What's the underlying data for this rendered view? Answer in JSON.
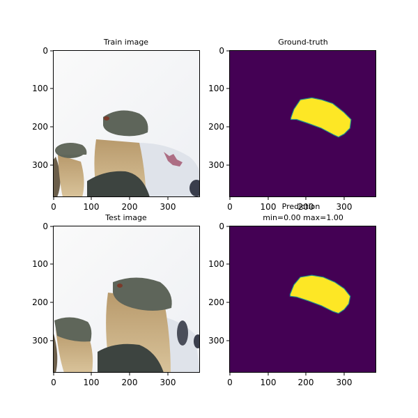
{
  "chart_data": [
    {
      "type": "image",
      "title": "Train image",
      "xlim": [
        0,
        384
      ],
      "ylim": [
        384,
        0
      ],
      "xticks": [
        0,
        100,
        200,
        300
      ],
      "yticks": [
        0,
        100,
        200,
        300
      ],
      "xtick_labels": [
        "0",
        "100",
        "200",
        "300"
      ],
      "ytick_labels": [
        "0",
        "100",
        "200",
        "300"
      ]
    },
    {
      "type": "heatmap",
      "title": "Ground-truth",
      "xlim": [
        0,
        384
      ],
      "ylim": [
        384,
        0
      ],
      "xticks": [
        0,
        100,
        200,
        300
      ],
      "yticks": [
        0,
        100,
        200,
        300
      ],
      "xtick_labels": [
        "0",
        "100",
        "200",
        "300"
      ],
      "ytick_labels": [
        "0",
        "100",
        "200",
        "300"
      ],
      "colormap": "viridis",
      "background_color": "#440154",
      "mask_color": "#fde725",
      "mask_outline": [
        [
          160,
          178
        ],
        [
          168,
          155
        ],
        [
          185,
          130
        ],
        [
          215,
          125
        ],
        [
          240,
          130
        ],
        [
          270,
          140
        ],
        [
          298,
          162
        ],
        [
          318,
          182
        ],
        [
          315,
          205
        ],
        [
          300,
          220
        ],
        [
          285,
          228
        ],
        [
          272,
          222
        ],
        [
          240,
          205
        ],
        [
          205,
          192
        ],
        [
          175,
          182
        ],
        [
          160,
          182
        ]
      ]
    },
    {
      "type": "image",
      "title": "Test image",
      "xlim": [
        0,
        384
      ],
      "ylim": [
        384,
        0
      ],
      "xticks": [
        0,
        100,
        200,
        300
      ],
      "yticks": [
        0,
        100,
        200,
        300
      ],
      "xtick_labels": [
        "0",
        "100",
        "200",
        "300"
      ],
      "ytick_labels": [
        "0",
        "100",
        "200",
        "300"
      ]
    },
    {
      "type": "heatmap",
      "title": "Prediction",
      "subtitle": "min=0.00 max=1.00",
      "xlim": [
        0,
        384
      ],
      "ylim": [
        384,
        0
      ],
      "xticks": [
        0,
        100,
        200,
        300
      ],
      "yticks": [
        0,
        100,
        200,
        300
      ],
      "xtick_labels": [
        "0",
        "100",
        "200",
        "300"
      ],
      "ytick_labels": [
        "0",
        "100",
        "200",
        "300"
      ],
      "colormap": "viridis",
      "min": 0.0,
      "max": 1.0,
      "background_color": "#440154",
      "mask_color": "#fde725",
      "mask_outline": [
        [
          158,
          180
        ],
        [
          168,
          155
        ],
        [
          185,
          135
        ],
        [
          215,
          130
        ],
        [
          245,
          135
        ],
        [
          275,
          148
        ],
        [
          300,
          165
        ],
        [
          316,
          185
        ],
        [
          312,
          205
        ],
        [
          300,
          220
        ],
        [
          285,
          230
        ],
        [
          270,
          225
        ],
        [
          240,
          210
        ],
        [
          205,
          197
        ],
        [
          175,
          187
        ],
        [
          158,
          185
        ]
      ]
    }
  ]
}
